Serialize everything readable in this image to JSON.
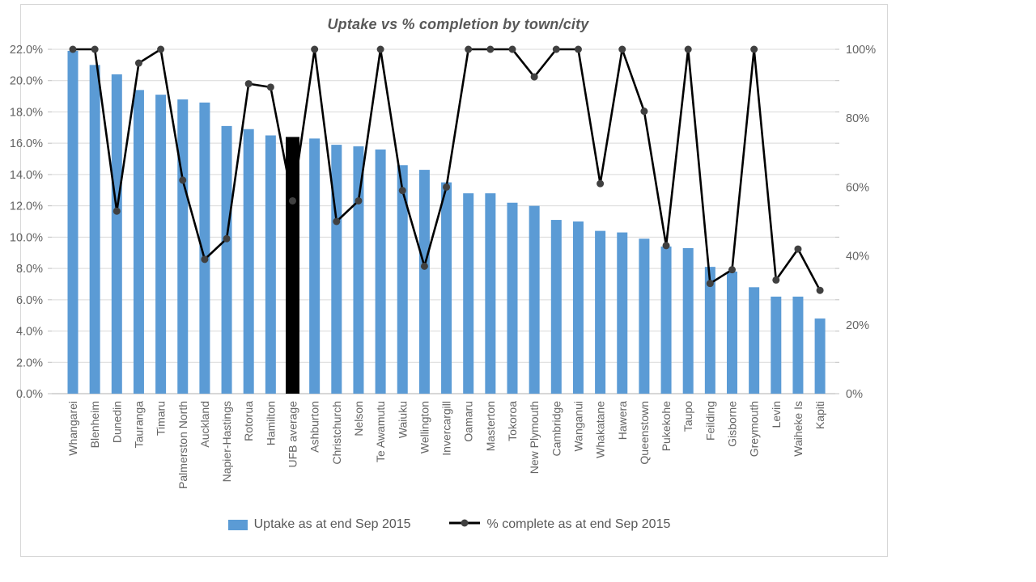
{
  "chart_data": {
    "type": "combo",
    "title": "Uptake vs % completion by town/city",
    "categories": [
      "Whangarei",
      "Blenheim",
      "Dunedin",
      "Tauranga",
      "Timaru",
      "Palmerston North",
      "Auckland",
      "Napier-Hastings",
      "Rotorua",
      "Hamilton",
      "UFB average",
      "Ashburton",
      "Christchurch",
      "Nelson",
      "Te Awamutu",
      "Waiuku",
      "Wellington",
      "Invercargill",
      "Oamaru",
      "Masterton",
      "Tokoroa",
      "New Plymouth",
      "Cambridge",
      "Wanganui",
      "Whakatane",
      "Hawera",
      "Queenstown",
      "Pukekohe",
      "Taupo",
      "Feilding",
      "Gisborne",
      "Greymouth",
      "Levin",
      "Waiheke Is",
      "Kapiti"
    ],
    "series": [
      {
        "name": "Uptake as at end Sep 2015",
        "type": "bar",
        "axis": "left",
        "unit": "%",
        "color": "#5B9BD5",
        "values": [
          21.9,
          21.0,
          20.4,
          19.4,
          19.1,
          18.8,
          18.6,
          17.1,
          16.9,
          16.5,
          16.4,
          16.3,
          15.9,
          15.8,
          15.6,
          14.6,
          14.3,
          13.5,
          12.8,
          12.8,
          12.2,
          12.0,
          11.1,
          11.0,
          10.4,
          10.3,
          9.9,
          9.4,
          9.3,
          8.1,
          7.8,
          6.8,
          6.2,
          6.2,
          4.8
        ]
      },
      {
        "name": "% complete as at end Sep 2015",
        "type": "line",
        "axis": "right",
        "unit": "%",
        "color": "#000000",
        "marker_color": "#404040",
        "values": [
          100,
          100,
          53,
          96,
          100,
          62,
          39,
          45,
          90,
          89,
          56,
          100,
          50,
          56,
          100,
          59,
          37,
          60,
          100,
          100,
          100,
          92,
          100,
          100,
          61,
          100,
          82,
          43,
          100,
          32,
          36,
          100,
          33,
          42,
          30
        ]
      }
    ],
    "highlight": {
      "category": "UFB average",
      "bar_color": "#000000"
    },
    "left_axis": {
      "min": 0,
      "max": 22,
      "step": 2,
      "tick_labels": [
        "0.0%",
        "2.0%",
        "4.0%",
        "6.0%",
        "8.0%",
        "10.0%",
        "12.0%",
        "14.0%",
        "16.0%",
        "18.0%",
        "20.0%",
        "22.0%"
      ]
    },
    "right_axis": {
      "min": 0,
      "max": 100,
      "step": 20,
      "tick_labels": [
        "0%",
        "20%",
        "40%",
        "60%",
        "80%",
        "100%"
      ]
    },
    "grid": true,
    "legend_position": "bottom",
    "colors": {
      "gridline": "#d9d9d9",
      "axis_line": "#bfbfbf",
      "tick": "#bfbfbf",
      "axis_text": "#646464",
      "title_text": "#595959"
    }
  }
}
